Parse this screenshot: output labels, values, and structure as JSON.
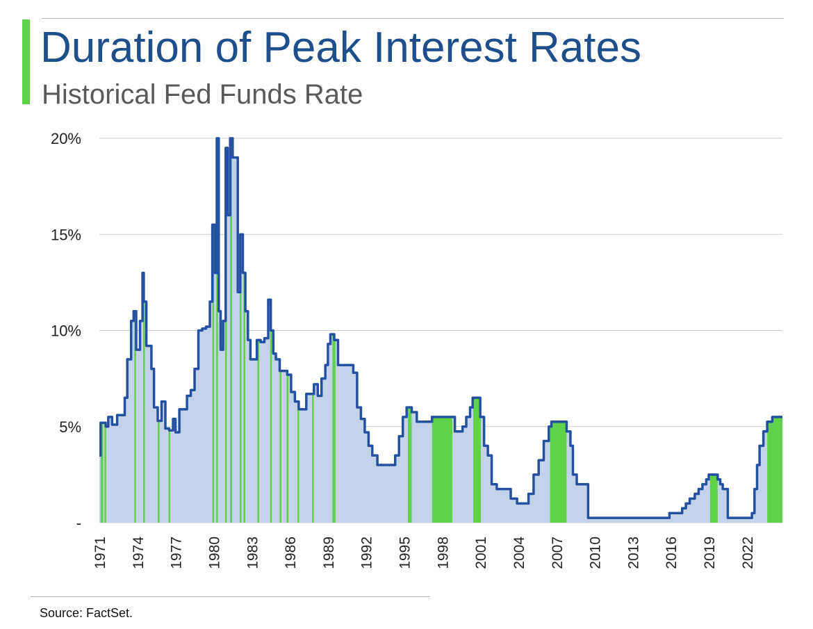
{
  "header": {
    "title": "Duration of Peak Interest Rates",
    "subtitle": "Historical Fed Funds Rate"
  },
  "footer": {
    "source": "Source: FactSet."
  },
  "colors": {
    "title": "#1f4e8c",
    "subtitle": "#595959",
    "accent": "#5fd24a",
    "line": "#2350a0",
    "fill": "#c5d3ea",
    "peak_fill": "#5fd24a",
    "grid": "#c8c8c8",
    "tick_text": "#222222"
  },
  "chart_data": {
    "type": "area",
    "title": "Historical Fed Funds Rate",
    "xlabel": "",
    "ylabel": "",
    "xlim": [
      1971,
      2024.8
    ],
    "ylim": [
      0,
      20
    ],
    "grid": "horizontal",
    "y_ticks": [
      {
        "value": 0,
        "label": "-"
      },
      {
        "value": 5,
        "label": "5%"
      },
      {
        "value": 10,
        "label": "10%"
      },
      {
        "value": 15,
        "label": "15%"
      },
      {
        "value": 20,
        "label": "20%"
      }
    ],
    "x_ticks": [
      "1971",
      "1974",
      "1977",
      "1980",
      "1983",
      "1986",
      "1989",
      "1992",
      "1995",
      "1998",
      "2001",
      "2004",
      "2007",
      "2010",
      "2013",
      "2016",
      "2019",
      "2022"
    ],
    "x_tick_values": [
      1971,
      1974,
      1977,
      1980,
      1983,
      1986,
      1989,
      1992,
      1995,
      1998,
      2001,
      2004,
      2007,
      2010,
      2013,
      2016,
      2019,
      2022
    ],
    "series": [
      {
        "name": "",
        "x": [
          1971.0,
          1971.1,
          1971.3,
          1971.5,
          1971.7,
          1972.0,
          1972.4,
          1972.7,
          1973.0,
          1973.2,
          1973.5,
          1973.7,
          1973.9,
          1974.0,
          1974.2,
          1974.4,
          1974.5,
          1974.7,
          1974.9,
          1975.1,
          1975.3,
          1975.6,
          1975.9,
          1976.2,
          1976.5,
          1976.8,
          1977.0,
          1977.3,
          1977.6,
          1977.9,
          1978.2,
          1978.5,
          1978.8,
          1979.1,
          1979.4,
          1979.7,
          1979.9,
          1980.1,
          1980.25,
          1980.4,
          1980.55,
          1980.75,
          1980.95,
          1981.1,
          1981.3,
          1981.5,
          1981.7,
          1981.9,
          1982.1,
          1982.3,
          1982.5,
          1982.7,
          1982.9,
          1983.1,
          1983.4,
          1983.7,
          1984.0,
          1984.3,
          1984.5,
          1984.7,
          1984.9,
          1985.2,
          1985.5,
          1985.8,
          1986.1,
          1986.4,
          1986.7,
          1987.0,
          1987.3,
          1987.6,
          1987.9,
          1988.2,
          1988.5,
          1988.8,
          1989.0,
          1989.2,
          1989.5,
          1989.8,
          1990.1,
          1990.4,
          1990.7,
          1991.0,
          1991.3,
          1991.6,
          1991.9,
          1992.2,
          1992.5,
          1992.9,
          1993.5,
          1994.0,
          1994.3,
          1994.6,
          1994.9,
          1995.2,
          1995.6,
          1996.0,
          1996.5,
          1997.2,
          1998.0,
          1998.7,
          1999.0,
          1999.3,
          1999.6,
          1999.9,
          2000.2,
          2000.4,
          2000.6,
          2001.0,
          2001.3,
          2001.6,
          2001.9,
          2002.3,
          2002.8,
          2003.4,
          2003.9,
          2004.4,
          2004.8,
          2005.2,
          2005.6,
          2006.0,
          2006.4,
          2006.6,
          2007.0,
          2007.5,
          2007.8,
          2008.1,
          2008.3,
          2008.6,
          2008.9,
          2009.5,
          2011.0,
          2012.5,
          2014.0,
          2015.5,
          2015.9,
          2016.5,
          2016.9,
          2017.2,
          2017.5,
          2017.9,
          2018.2,
          2018.5,
          2018.8,
          2019.0,
          2019.4,
          2019.7,
          2019.9,
          2020.1,
          2020.2,
          2020.5,
          2021.0,
          2021.5,
          2022.0,
          2022.2,
          2022.4,
          2022.6,
          2022.8,
          2023.0,
          2023.3,
          2023.6,
          2024.0,
          2024.8
        ],
        "values": [
          3.5,
          5.2,
          5.2,
          5.0,
          5.5,
          5.1,
          5.6,
          5.6,
          6.5,
          8.5,
          10.5,
          11.0,
          9.0,
          9.0,
          10.5,
          13.0,
          11.5,
          9.2,
          9.2,
          8.0,
          6.0,
          5.3,
          6.3,
          4.9,
          4.8,
          5.4,
          4.7,
          5.9,
          5.9,
          6.6,
          6.9,
          8.0,
          10.0,
          10.1,
          10.2,
          11.5,
          15.5,
          13.0,
          20.0,
          11.0,
          9.0,
          10.5,
          19.5,
          16.0,
          20.0,
          19.0,
          19.0,
          12.0,
          15.0,
          13.0,
          11.0,
          9.5,
          8.5,
          8.5,
          9.5,
          9.4,
          9.6,
          11.6,
          10.0,
          8.8,
          8.5,
          7.9,
          7.9,
          7.7,
          6.8,
          6.3,
          5.9,
          5.9,
          6.7,
          6.7,
          7.2,
          6.6,
          7.5,
          8.2,
          9.3,
          9.8,
          9.5,
          8.2,
          8.2,
          8.2,
          8.2,
          7.8,
          6.0,
          5.4,
          4.7,
          4.0,
          3.5,
          3.0,
          3.0,
          3.0,
          3.5,
          4.5,
          5.5,
          6.0,
          5.75,
          5.25,
          5.25,
          5.5,
          5.5,
          5.5,
          4.75,
          4.75,
          5.0,
          5.5,
          6.0,
          6.5,
          6.5,
          5.5,
          4.0,
          3.5,
          2.0,
          1.75,
          1.75,
          1.25,
          1.0,
          1.0,
          1.5,
          2.5,
          3.25,
          4.25,
          5.0,
          5.25,
          5.25,
          5.25,
          4.75,
          4.0,
          2.5,
          2.0,
          2.0,
          0.25,
          0.25,
          0.25,
          0.25,
          0.25,
          0.5,
          0.5,
          0.75,
          1.0,
          1.25,
          1.5,
          1.75,
          2.0,
          2.25,
          2.5,
          2.5,
          2.25,
          2.0,
          1.75,
          1.75,
          0.25,
          0.25,
          0.25,
          0.25,
          0.25,
          0.5,
          1.75,
          3.0,
          4.0,
          4.75,
          5.25,
          5.5,
          5.5
        ]
      }
    ],
    "peak_periods": [
      [
        1971.1,
        1971.3
      ],
      [
        1971.4,
        1971.5
      ],
      [
        1973.75,
        1973.85
      ],
      [
        1974.45,
        1974.55
      ],
      [
        1975.6,
        1975.68
      ],
      [
        1976.45,
        1976.55
      ],
      [
        1979.9,
        1980.0
      ],
      [
        1980.2,
        1980.28
      ],
      [
        1980.9,
        1980.98
      ],
      [
        1981.3,
        1981.45
      ],
      [
        1982.05,
        1982.15
      ],
      [
        1982.35,
        1982.45
      ],
      [
        1983.45,
        1983.55
      ],
      [
        1984.45,
        1984.55
      ],
      [
        1985.2,
        1985.28
      ],
      [
        1985.75,
        1985.9
      ],
      [
        1986.6,
        1986.7
      ],
      [
        1987.75,
        1987.85
      ],
      [
        1989.35,
        1989.6
      ],
      [
        1995.3,
        1995.6
      ],
      [
        1997.2,
        1998.8
      ],
      [
        2000.45,
        2001.05
      ],
      [
        2006.5,
        2007.8
      ],
      [
        2019.1,
        2019.7
      ],
      [
        2023.6,
        2024.8
      ]
    ]
  }
}
